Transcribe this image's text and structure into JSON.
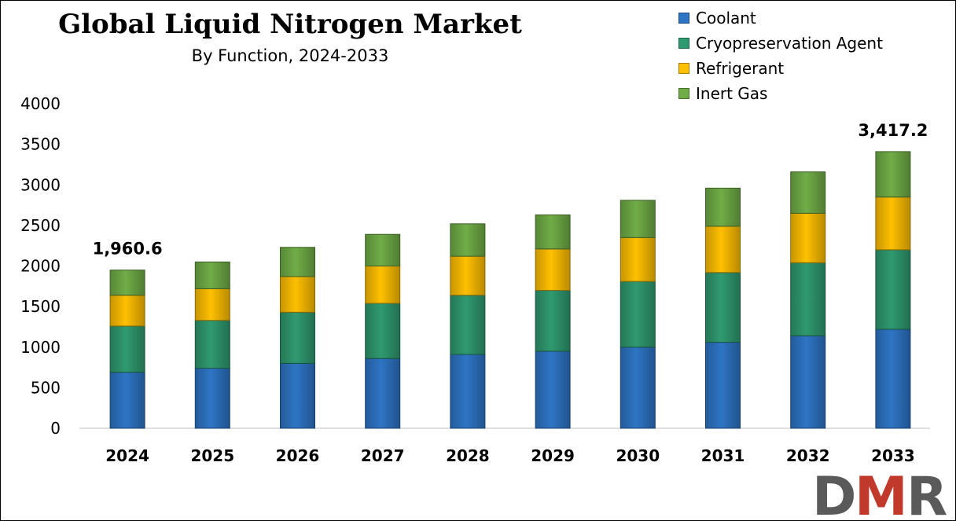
{
  "chart_data": {
    "type": "bar",
    "stacked": true,
    "title": "Global Liquid Nitrogen Market",
    "subtitle": "By Function, 2024-2033",
    "categories": [
      "2024",
      "2025",
      "2026",
      "2027",
      "2028",
      "2029",
      "2030",
      "2031",
      "2032",
      "2033"
    ],
    "series": [
      {
        "name": "Coolant",
        "color": "#2e75c5",
        "values": [
          690,
          740,
          800,
          860,
          910,
          950,
          1000,
          1060,
          1140,
          1220
        ]
      },
      {
        "name": "Cryopreservation Agent",
        "color": "#2f9a70",
        "values": [
          570,
          590,
          630,
          680,
          730,
          750,
          810,
          860,
          900,
          980
        ]
      },
      {
        "name": "Refrigerant",
        "color": "#ffc000",
        "values": [
          380,
          390,
          440,
          460,
          480,
          510,
          540,
          570,
          610,
          650
        ]
      },
      {
        "name": "Inert Gas",
        "color": "#70ad47",
        "values": [
          310,
          330,
          360,
          390,
          400,
          420,
          460,
          470,
          510,
          560
        ]
      }
    ],
    "ylim": [
      0,
      4000
    ],
    "yticks": [
      0,
      500,
      1000,
      1500,
      2000,
      2500,
      3000,
      3500,
      4000
    ],
    "grid": false,
    "legend_position": "top-right",
    "annotations": [
      {
        "category": "2024",
        "text": "1,960.6"
      },
      {
        "category": "2033",
        "text": "3,417.2"
      }
    ]
  },
  "logo": {
    "text": "DMR",
    "colors": [
      "#555555",
      "#c0392b"
    ]
  }
}
